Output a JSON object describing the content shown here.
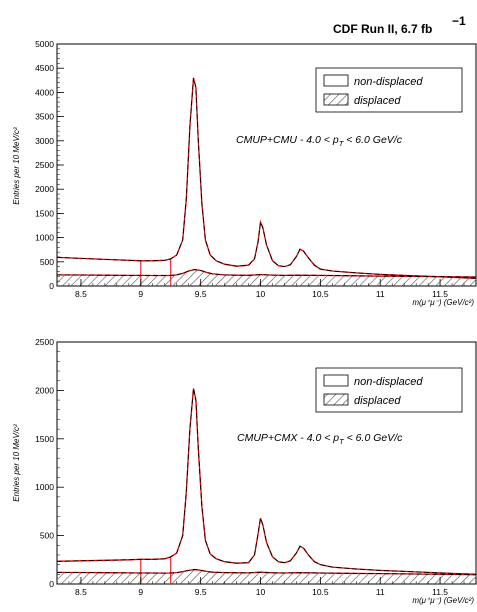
{
  "header": {
    "experiment_label": "CDF Run II, 6.7 fb",
    "lumi_superscript": "−1"
  },
  "chart_data": [
    {
      "type": "line",
      "y_axis_label": "Entries per 10 MeV/c²",
      "x_axis_label": "m(μ⁺μ⁻)  (GeV/c²)",
      "xlim": [
        8.3,
        11.8
      ],
      "ylim": [
        0,
        5000
      ],
      "x_ticks": [
        8.5,
        9,
        9.5,
        10,
        10.5,
        11,
        11.5
      ],
      "x_tick_labels": [
        "8.5",
        "9",
        "9.5",
        "10",
        "10.5",
        "11",
        "11.5"
      ],
      "y_ticks": [
        0,
        500,
        1000,
        1500,
        2000,
        2500,
        3000,
        3500,
        4000,
        4500,
        5000
      ],
      "y_tick_labels": [
        "0",
        "500",
        "1000",
        "1500",
        "2000",
        "2500",
        "3000",
        "3500",
        "4000",
        "4500",
        "5000"
      ],
      "annotation": "CMUP+CMU - 4.0 < p",
      "annotation_sub": "T",
      "annotation_tail": " < 6.0 GeV/c",
      "legend": {
        "position": "top-right",
        "entries": [
          "non-displaced",
          "displaced"
        ]
      },
      "region_lines_x": [
        9.0,
        9.25
      ],
      "series": [
        {
          "name": "non-displaced",
          "color": "#000000",
          "x": [
            8.3,
            8.5,
            8.7,
            8.9,
            9.0,
            9.1,
            9.2,
            9.25,
            9.3,
            9.35,
            9.38,
            9.41,
            9.44,
            9.46,
            9.48,
            9.51,
            9.54,
            9.58,
            9.63,
            9.7,
            9.8,
            9.9,
            9.95,
            9.98,
            10.0,
            10.02,
            10.05,
            10.1,
            10.15,
            10.2,
            10.25,
            10.3,
            10.33,
            10.36,
            10.4,
            10.45,
            10.5,
            10.6,
            10.8,
            11.0,
            11.2,
            11.4,
            11.6,
            11.8
          ],
          "y": [
            590,
            570,
            550,
            530,
            520,
            520,
            530,
            560,
            640,
            950,
            1800,
            3300,
            4300,
            4100,
            3000,
            1700,
            950,
            640,
            520,
            450,
            410,
            430,
            560,
            920,
            1320,
            1200,
            850,
            520,
            420,
            400,
            440,
            610,
            760,
            720,
            580,
            430,
            350,
            310,
            270,
            240,
            220,
            200,
            180,
            160
          ]
        },
        {
          "name": "displaced",
          "color": "#000000",
          "x": [
            8.3,
            8.5,
            8.7,
            8.9,
            9.0,
            9.1,
            9.2,
            9.25,
            9.3,
            9.35,
            9.4,
            9.45,
            9.5,
            9.55,
            9.6,
            9.7,
            9.8,
            9.9,
            10.0,
            10.1,
            10.2,
            10.3,
            10.4,
            10.5,
            10.7,
            11.0,
            11.3,
            11.6,
            11.8
          ],
          "y": [
            230,
            228,
            224,
            220,
            218,
            217,
            216,
            218,
            230,
            260,
            310,
            340,
            320,
            280,
            250,
            230,
            224,
            222,
            235,
            226,
            220,
            224,
            222,
            218,
            212,
            205,
            198,
            190,
            185
          ]
        }
      ]
    },
    {
      "type": "line",
      "y_axis_label": "Entries per 10 MeV/c²",
      "x_axis_label": "m(μ⁺μ⁻)  (GeV/c²)",
      "xlim": [
        8.3,
        11.8
      ],
      "ylim": [
        0,
        2500
      ],
      "x_ticks": [
        8.5,
        9,
        9.5,
        10,
        10.5,
        11,
        11.5
      ],
      "x_tick_labels": [
        "8.5",
        "9",
        "9.5",
        "10",
        "10.5",
        "11",
        "11.5"
      ],
      "y_ticks": [
        0,
        500,
        1000,
        1500,
        2000,
        2500
      ],
      "y_tick_labels": [
        "0",
        "500",
        "1000",
        "1500",
        "2000",
        "2500"
      ],
      "annotation": "CMUP+CMX - 4.0 < p",
      "annotation_sub": "T",
      "annotation_tail": " < 6.0 GeV/c",
      "legend": {
        "position": "top-right",
        "entries": [
          "non-displaced",
          "displaced"
        ]
      },
      "region_lines_x": [
        9.0,
        9.25
      ],
      "series": [
        {
          "name": "non-displaced",
          "color": "#000000",
          "x": [
            8.3,
            8.5,
            8.7,
            8.9,
            9.0,
            9.1,
            9.2,
            9.25,
            9.3,
            9.35,
            9.38,
            9.41,
            9.44,
            9.46,
            9.48,
            9.51,
            9.54,
            9.58,
            9.63,
            9.7,
            9.8,
            9.9,
            9.95,
            9.98,
            10.0,
            10.02,
            10.05,
            10.1,
            10.15,
            10.2,
            10.25,
            10.3,
            10.33,
            10.36,
            10.4,
            10.45,
            10.5,
            10.6,
            10.8,
            11.0,
            11.2,
            11.4,
            11.6,
            11.8
          ],
          "y": [
            235,
            240,
            245,
            250,
            255,
            255,
            260,
            280,
            320,
            500,
            950,
            1600,
            2020,
            1900,
            1400,
            800,
            450,
            310,
            260,
            230,
            215,
            220,
            300,
            520,
            680,
            610,
            430,
            280,
            230,
            220,
            240,
            320,
            390,
            370,
            300,
            230,
            200,
            175,
            155,
            140,
            130,
            120,
            110,
            100
          ]
        },
        {
          "name": "displaced",
          "color": "#000000",
          "x": [
            8.3,
            8.5,
            8.7,
            8.9,
            9.0,
            9.1,
            9.2,
            9.25,
            9.3,
            9.35,
            9.4,
            9.45,
            9.5,
            9.55,
            9.6,
            9.7,
            9.8,
            9.9,
            10.0,
            10.1,
            10.2,
            10.3,
            10.4,
            10.5,
            10.7,
            11.0,
            11.3,
            11.6,
            11.8
          ],
          "y": [
            120,
            119,
            117,
            115,
            114,
            114,
            113,
            114,
            118,
            128,
            140,
            150,
            142,
            130,
            122,
            118,
            116,
            115,
            122,
            116,
            114,
            117,
            116,
            114,
            111,
            107,
            103,
            99,
            96
          ]
        }
      ]
    }
  ]
}
